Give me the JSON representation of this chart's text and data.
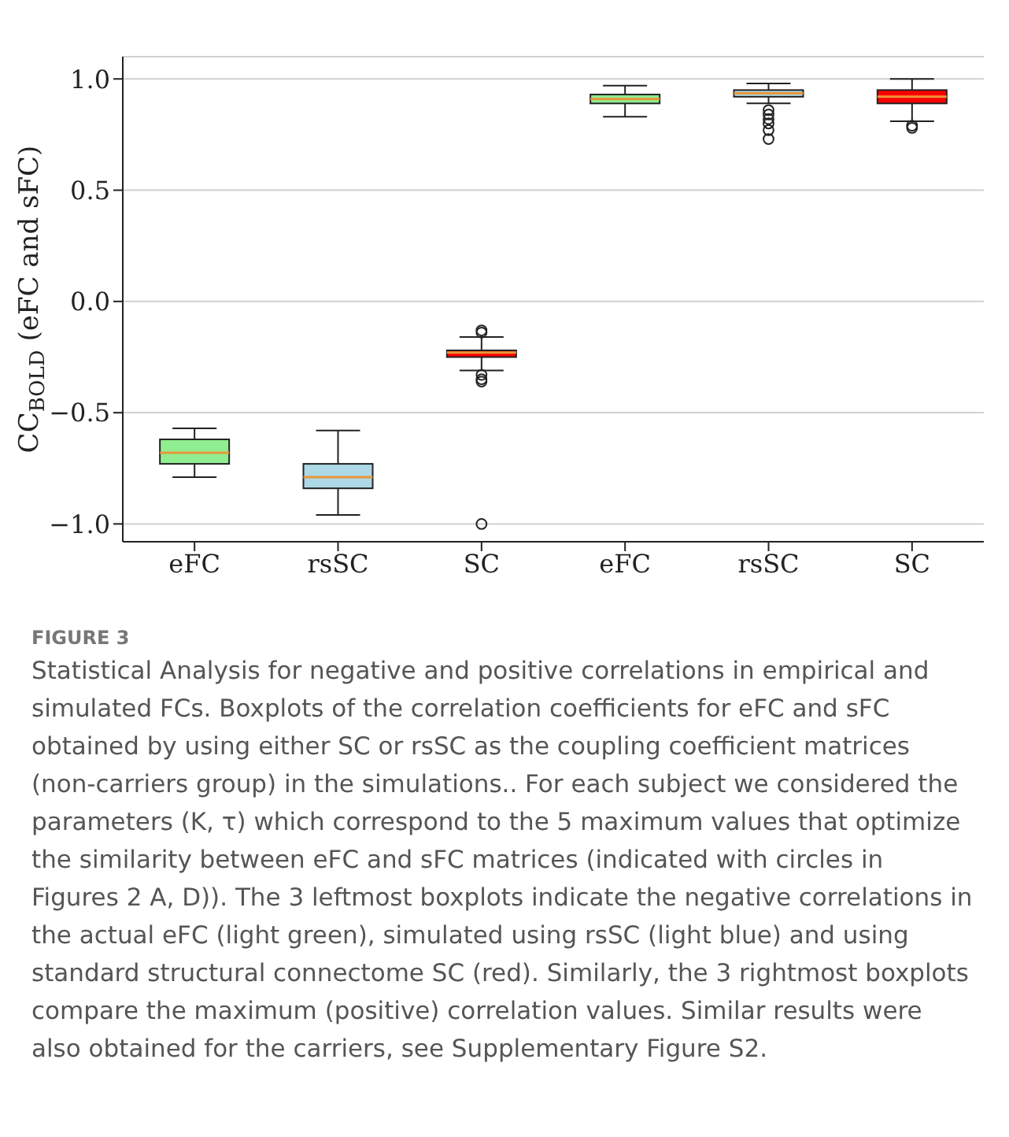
{
  "chart_data": {
    "type": "box",
    "ylabel": "CC$_{BOLD}$ (eFC and sFC)",
    "categories": [
      "eFC",
      "rsSC",
      "SC",
      "eFC",
      "rsSC",
      "SC"
    ],
    "colors": [
      "#90ee90",
      "#add8e6",
      "#ff0000",
      "#90ee90",
      "#add8e6",
      "#ff0000"
    ],
    "boxes": [
      {
        "low": -0.79,
        "q1": -0.73,
        "median": -0.68,
        "q3": -0.62,
        "high": -0.57
      },
      {
        "low": -0.96,
        "q1": -0.84,
        "median": -0.79,
        "q3": -0.73,
        "high": -0.58
      },
      {
        "low": -0.31,
        "q1": -0.25,
        "median": -0.23,
        "q3": -0.22,
        "high": -0.16,
        "outliers": [
          -0.13,
          -0.14,
          -0.33,
          -0.35,
          -0.36,
          -1.0
        ]
      },
      {
        "low": 0.83,
        "q1": 0.89,
        "median": 0.91,
        "q3": 0.93,
        "high": 0.97
      },
      {
        "low": 0.89,
        "q1": 0.92,
        "median": 0.935,
        "q3": 0.95,
        "high": 0.98,
        "outliers": [
          0.86,
          0.84,
          0.82,
          0.8,
          0.77,
          0.73
        ]
      },
      {
        "low": 0.81,
        "q1": 0.89,
        "median": 0.92,
        "q3": 0.95,
        "high": 1.0,
        "outliers": [
          0.79,
          0.78
        ]
      }
    ],
    "ylim": [
      -1.08,
      1.1
    ],
    "yticks": [
      {
        "value": -1,
        "label": "−1.0"
      },
      {
        "value": -0.5,
        "label": "−0.5"
      },
      {
        "value": 0,
        "label": "0.0"
      },
      {
        "value": 0.5,
        "label": "0.5"
      },
      {
        "value": 1,
        "label": "1.0"
      }
    ],
    "grid": "y",
    "annotations": [
      "FIGURE 3",
      "Statistical Analysis for negative and positive correlations in empirical and simulated FCs. Boxplots of the correlation coefficients for eFC and sFC obtained by using either SC or rsSC as the coupling coefficient matrices (non-carriers group) in the simulations.. For each subject we considered the parameters (K, τ) which correspond to the 5 maximum values that optimize the similarity between eFC and sFC matrices (indicated with circles in Figures 2 A, D)). The 3 leftmost boxplots indicate the negative correlations in the actual eFC (light green), simulated using rsSC (light blue) and using standard structural connectome SC (red). Similarly, the 3 rightmost boxplots compare the maximum (positive) correlation values. Similar results were also obtained for the carriers, see Supplementary Figure S2."
    ]
  }
}
